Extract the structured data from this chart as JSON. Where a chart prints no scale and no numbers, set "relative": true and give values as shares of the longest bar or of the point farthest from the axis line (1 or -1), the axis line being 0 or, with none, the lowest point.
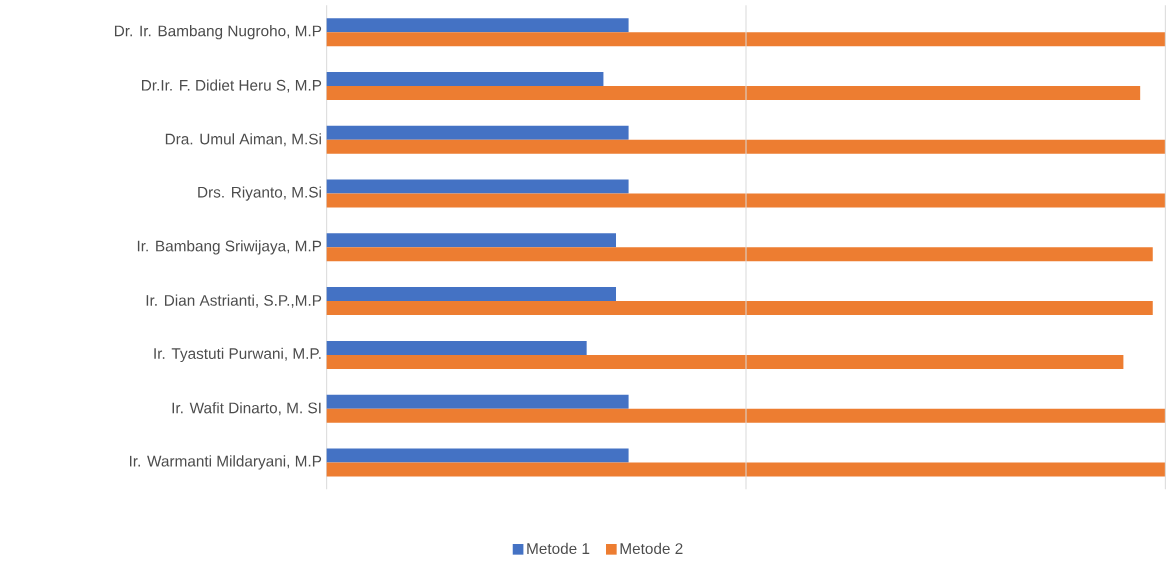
{
  "chart_data": {
    "type": "bar",
    "orientation": "horizontal",
    "relative": true,
    "ref_lines": [
      {
        "axis": "x",
        "value": 0.5,
        "color": "#d9d9d9"
      },
      {
        "axis": "x",
        "value": 1,
        "color": "#d9d9d9"
      }
    ],
    "legend": "bottom",
    "categories": [
      "Dr. Ir. Bambang Nugroho, M.P",
      "Dr.Ir. F. Didiet Heru S, M.P",
      "Dra. Umul Aiman, M.Si",
      "Drs. Riyanto, M.Si",
      "Ir. Bambang Sriwijaya, M.P",
      "Ir. Dian Astrianti, S.P.,M.P",
      "Ir. Tyastuti Purwani, M.P.",
      "Ir. Wafit Dinarto, M. SI",
      "Ir. Warmanti Mildaryani, M.P"
    ],
    "series": [
      {
        "name": "Metode 1",
        "color": "#4472c4",
        "values": [
          0.36,
          0.33,
          0.36,
          0.36,
          0.345,
          0.345,
          0.31,
          0.36,
          0.36
        ]
      },
      {
        "name": "Metode 2",
        "color": "#ed7d31",
        "values": [
          1,
          0.97,
          1,
          1,
          0.985,
          0.985,
          0.95,
          1,
          1
        ]
      }
    ]
  }
}
